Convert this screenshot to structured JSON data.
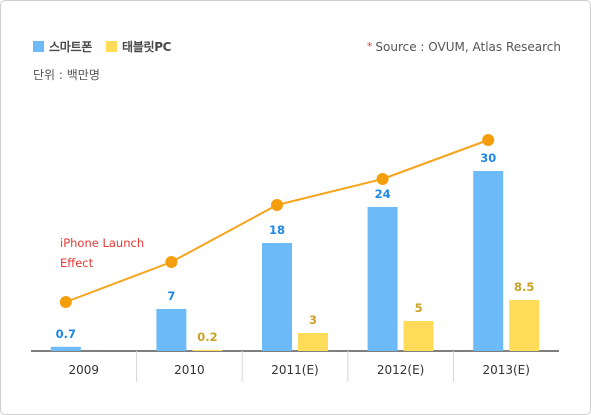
{
  "legend": {
    "items": [
      {
        "label": "스마트폰",
        "color": "#6cbaf7"
      },
      {
        "label": "태블릿PC",
        "color": "#fedb58"
      }
    ]
  },
  "unit_label": "단위 : 백만명",
  "source": {
    "marker": "*",
    "text": "Source : OVUM, Atlas Research"
  },
  "annotation": {
    "line1": "iPhone Launch",
    "line2": "Effect",
    "color": "#e53935"
  },
  "chart_data": {
    "type": "bar",
    "categories": [
      "2009",
      "2010",
      "2011(E)",
      "2012(E)",
      "2013(E)"
    ],
    "series": [
      {
        "name": "스마트폰",
        "values": [
          0.7,
          7,
          18,
          24,
          30
        ],
        "color": "#6cbaf7",
        "label_color": "#1e88e5"
      },
      {
        "name": "태블릿PC",
        "values": [
          0,
          0.2,
          3,
          5,
          8.5
        ],
        "color": "#fedb58",
        "label_color": "#c9a227"
      }
    ],
    "trend_line": {
      "color": "#f7a41c",
      "marker_color": "#f59e0b"
    },
    "grid": false,
    "legend_position": "top-left"
  }
}
